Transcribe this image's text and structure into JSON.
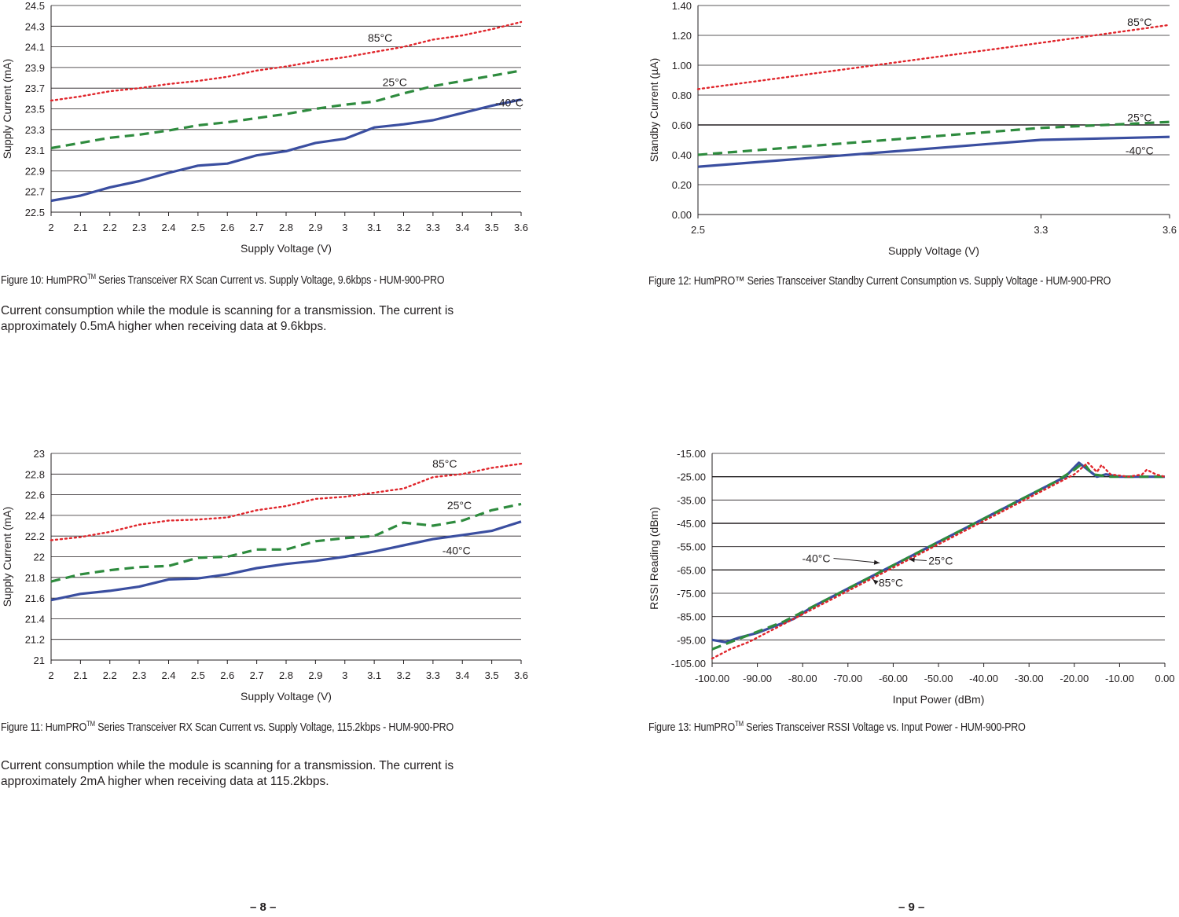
{
  "colors": {
    "cold": "#3a4ea0",
    "room": "#2e8b3e",
    "hot": "#e0252b",
    "grid": "#231f20"
  },
  "charts": [
    {
      "id": "fig10",
      "type": "line",
      "xlabel": "Supply Voltage (V)",
      "ylabel": "Supply Current (mA)",
      "x": [
        2,
        2.1,
        2.2,
        2.3,
        2.4,
        2.5,
        2.6,
        2.7,
        2.8,
        2.9,
        3,
        3.1,
        3.2,
        3.3,
        3.4,
        3.5,
        3.6
      ],
      "x_ticks": [
        "2",
        "2.1",
        "2.2",
        "2.3",
        "2.4",
        "2.5",
        "2.6",
        "2.7",
        "2.8",
        "2.9",
        "3",
        "3.1",
        "3.2",
        "3.3",
        "3.4",
        "3.5",
        "3.6"
      ],
      "ylim": [
        22.5,
        24.5
      ],
      "y_ticks": [
        22.5,
        22.7,
        22.9,
        23.1,
        23.3,
        23.5,
        23.7,
        23.9,
        24.1,
        24.3,
        24.5
      ],
      "y_tick_labels": [
        "22.5",
        "22.7",
        "22.9",
        "23.1",
        "23.3",
        "23.5",
        "23.7",
        "23.9",
        "24.1",
        "24.3",
        "24.5"
      ],
      "series": [
        {
          "name": "-40°C",
          "style": "solid",
          "values": [
            22.61,
            22.66,
            22.74,
            22.8,
            22.88,
            22.95,
            22.97,
            23.05,
            23.09,
            23.17,
            23.21,
            23.32,
            23.35,
            23.39,
            23.46,
            23.53,
            23.59
          ]
        },
        {
          "name": "25°C",
          "style": "dashed",
          "values": [
            23.12,
            23.17,
            23.22,
            23.25,
            23.29,
            23.34,
            23.37,
            23.41,
            23.45,
            23.5,
            23.54,
            23.57,
            23.65,
            23.72,
            23.77,
            23.82,
            23.87
          ]
        },
        {
          "name": "85°C",
          "style": "dotted",
          "values": [
            23.58,
            23.62,
            23.67,
            23.7,
            23.74,
            23.77,
            23.81,
            23.87,
            23.91,
            23.96,
            24.0,
            24.05,
            24.1,
            24.17,
            24.21,
            24.27,
            24.34
          ]
        }
      ],
      "labels": [
        {
          "text": "85°C",
          "x": 3.12,
          "y": 24.19
        },
        {
          "text": "25°C",
          "x": 3.17,
          "y": 23.76
        },
        {
          "text": "-40°C",
          "x": 3.56,
          "y": 23.56
        }
      ]
    },
    {
      "id": "fig11",
      "type": "line",
      "xlabel": "Supply Voltage (V)",
      "ylabel": "Supply Current (mA)",
      "x": [
        2,
        2.1,
        2.2,
        2.3,
        2.4,
        2.5,
        2.6,
        2.7,
        2.8,
        2.9,
        3,
        3.1,
        3.2,
        3.3,
        3.4,
        3.5,
        3.6
      ],
      "x_ticks": [
        "2",
        "2.1",
        "2.2",
        "2.3",
        "2.4",
        "2.5",
        "2.6",
        "2.7",
        "2.8",
        "2.9",
        "3",
        "3.1",
        "3.2",
        "3.3",
        "3.4",
        "3.5",
        "3.6"
      ],
      "ylim": [
        21,
        23
      ],
      "y_ticks": [
        21,
        21.2,
        21.4,
        21.6,
        21.8,
        22,
        22.2,
        22.4,
        22.6,
        22.8,
        23
      ],
      "y_tick_labels": [
        "21",
        "21.2",
        "21.4",
        "21.6",
        "21.8",
        "22",
        "22.2",
        "22.4",
        "22.6",
        "22.8",
        "23"
      ],
      "series": [
        {
          "name": "-40°C",
          "style": "solid",
          "values": [
            21.58,
            21.64,
            21.67,
            21.71,
            21.78,
            21.79,
            21.83,
            21.89,
            21.93,
            21.96,
            22.0,
            22.05,
            22.11,
            22.17,
            22.21,
            22.25,
            22.34
          ]
        },
        {
          "name": "25°C",
          "style": "dashed",
          "values": [
            21.76,
            21.83,
            21.87,
            21.9,
            21.91,
            21.99,
            22.0,
            22.07,
            22.07,
            22.15,
            22.18,
            22.2,
            22.33,
            22.3,
            22.35,
            22.45,
            22.51
          ]
        },
        {
          "name": "85°C",
          "style": "dotted",
          "values": [
            22.16,
            22.19,
            22.24,
            22.31,
            22.35,
            22.36,
            22.38,
            22.45,
            22.49,
            22.56,
            22.58,
            22.62,
            22.66,
            22.77,
            22.8,
            22.86,
            22.9
          ]
        }
      ],
      "labels": [
        {
          "text": "85°C",
          "x": 3.34,
          "y": 22.9
        },
        {
          "text": "25°C",
          "x": 3.39,
          "y": 22.5
        },
        {
          "text": "-40°C",
          "x": 3.38,
          "y": 22.06
        }
      ]
    },
    {
      "id": "fig12",
      "type": "line",
      "xlabel": "Supply Voltage (V)",
      "ylabel": "Standby Current (µA)",
      "x": [
        2.5,
        3.3,
        3.6
      ],
      "x_ticks": [
        "2.5",
        "3.3",
        "3.6"
      ],
      "ylim": [
        0,
        1.4
      ],
      "y_ticks": [
        0,
        0.2,
        0.4,
        0.6,
        0.8,
        1.0,
        1.2,
        1.4
      ],
      "y_tick_labels": [
        "0.00",
        "0.20",
        "0.40",
        "0.60",
        "0.80",
        "1.00",
        "1.20",
        "1.40"
      ],
      "series": [
        {
          "name": "-40°C",
          "style": "solid",
          "values": [
            0.32,
            0.5,
            0.52
          ]
        },
        {
          "name": "25°C",
          "style": "dashed",
          "values": [
            0.4,
            0.58,
            0.62
          ]
        },
        {
          "name": "85°C",
          "style": "dotted",
          "values": [
            0.84,
            1.15,
            1.27
          ]
        }
      ],
      "labels": [
        {
          "text": "85°C",
          "x": 3.53,
          "y": 1.29
        },
        {
          "text": "25°C",
          "x": 3.53,
          "y": 0.65
        },
        {
          "text": "-40°C",
          "x": 3.53,
          "y": 0.43
        }
      ]
    },
    {
      "id": "fig13",
      "type": "line",
      "xlabel": "Input Power (dBm)",
      "ylabel": "RSSI Reading (dBm)",
      "x": [
        -100,
        -90,
        -80,
        -70,
        -60,
        -50,
        -40,
        -30,
        -20,
        -10,
        0
      ],
      "x_ticks": [
        "-100.00",
        "-90.00",
        "-80.00",
        "-70.00",
        "-60.00",
        "-50.00",
        "-40.00",
        "-30.00",
        "-20.00",
        "-10.00",
        "0.00"
      ],
      "ylim": [
        -105,
        -15
      ],
      "y_ticks": [
        -105,
        -95,
        -85,
        -75,
        -65,
        -55,
        -45,
        -35,
        -25,
        -15
      ],
      "y_tick_labels": [
        "-105.00",
        "-95.00",
        "-85.00",
        "-75.00",
        "-65.00",
        "-55.00",
        "-45.00",
        "-35.00",
        "-25.00",
        "-15.00"
      ],
      "series": [
        {
          "name": "-40°C",
          "style": "solid",
          "points": [
            [
              -100,
              -95
            ],
            [
              -97,
              -96
            ],
            [
              -94,
              -94
            ],
            [
              -90,
              -92
            ],
            [
              -86,
              -89
            ],
            [
              -82,
              -86
            ],
            [
              -78,
              -81
            ],
            [
              -74,
              -77
            ],
            [
              -70,
              -73
            ],
            [
              -66,
              -69
            ],
            [
              -62,
              -65
            ],
            [
              -58,
              -61
            ],
            [
              -54,
              -57
            ],
            [
              -50,
              -53
            ],
            [
              -46,
              -49
            ],
            [
              -42,
              -45
            ],
            [
              -38,
              -41
            ],
            [
              -34,
              -37
            ],
            [
              -30,
              -33
            ],
            [
              -26,
              -29
            ],
            [
              -22,
              -25
            ],
            [
              -19,
              -19
            ],
            [
              -17,
              -22
            ],
            [
              -15,
              -25
            ],
            [
              -13,
              -24
            ],
            [
              -10,
              -25
            ],
            [
              -5,
              -25
            ],
            [
              0,
              -25
            ]
          ]
        },
        {
          "name": "25°C",
          "style": "dashed",
          "points": [
            [
              -100,
              -99
            ],
            [
              -96,
              -96
            ],
            [
              -92,
              -93
            ],
            [
              -88,
              -90
            ],
            [
              -84,
              -87
            ],
            [
              -80,
              -83
            ],
            [
              -76,
              -79
            ],
            [
              -72,
              -75
            ],
            [
              -68,
              -71
            ],
            [
              -64,
              -67
            ],
            [
              -60,
              -63
            ],
            [
              -56,
              -59
            ],
            [
              -52,
              -55
            ],
            [
              -48,
              -51
            ],
            [
              -44,
              -47
            ],
            [
              -40,
              -43
            ],
            [
              -36,
              -39
            ],
            [
              -32,
              -35
            ],
            [
              -28,
              -31
            ],
            [
              -24,
              -27
            ],
            [
              -20,
              -22
            ],
            [
              -18,
              -19
            ],
            [
              -16,
              -24
            ],
            [
              -12,
              -25
            ],
            [
              -6,
              -25
            ],
            [
              0,
              -25
            ]
          ]
        },
        {
          "name": "85°C",
          "style": "dotted",
          "points": [
            [
              -100,
              -103
            ],
            [
              -96,
              -99
            ],
            [
              -92,
              -96
            ],
            [
              -88,
              -92
            ],
            [
              -84,
              -88
            ],
            [
              -80,
              -84
            ],
            [
              -76,
              -80
            ],
            [
              -72,
              -76
            ],
            [
              -68,
              -72
            ],
            [
              -64,
              -68
            ],
            [
              -60,
              -64
            ],
            [
              -56,
              -60
            ],
            [
              -52,
              -56
            ],
            [
              -48,
              -52
            ],
            [
              -44,
              -48
            ],
            [
              -40,
              -44
            ],
            [
              -36,
              -40
            ],
            [
              -32,
              -36
            ],
            [
              -28,
              -32
            ],
            [
              -24,
              -28
            ],
            [
              -20,
              -24
            ],
            [
              -17,
              -19
            ],
            [
              -15,
              -23
            ],
            [
              -14,
              -20
            ],
            [
              -12,
              -24
            ],
            [
              -8,
              -25
            ],
            [
              -5,
              -24
            ],
            [
              -4,
              -22
            ],
            [
              -2,
              -24
            ],
            [
              0,
              -25
            ]
          ]
        }
      ],
      "labels": [
        {
          "text": "-40°C",
          "x": -77,
          "y": -60,
          "ax": -63,
          "ay": -62
        },
        {
          "text": "25°C",
          "x": -49.5,
          "y": -61,
          "ax": -56.5,
          "ay": -60.5
        },
        {
          "text": "85°C",
          "x": -60.5,
          "y": -70.5,
          "ax": -64.5,
          "ay": -69
        }
      ]
    }
  ],
  "captions": {
    "fig10": {
      "pre": "Figure 10: HumPRO",
      "tm": "TM",
      "post": " Series Transceiver RX Scan Current vs. Supply Voltage, 9.6kbps - HUM-900-PRO"
    },
    "fig11": {
      "pre": "Figure 11: HumPRO",
      "tm": "TM",
      "post": " Series Transceiver RX Scan Current vs. Supply Voltage, 115.2kbps - HUM-900-PRO"
    },
    "fig12": "Figure 12: HumPRO™ Series Transceiver Standby Current Consumption vs. Supply Voltage - HUM-900-PRO",
    "fig13": {
      "pre": "Figure 13: HumPRO",
      "tm": "TM",
      "post": " Series Transceiver RSSI Voltage vs. Input Power - HUM-900-PRO"
    }
  },
  "paragraphs": {
    "p1": "Current consumption while the module is scanning for a transmission. The current is approximately 0.5mA higher when receiving data at 9.6kbps.",
    "p2": "Current consumption while the module is scanning for a transmission. The current is approximately 2mA higher when receiving data at 115.2kbps."
  },
  "pages": {
    "left": "– 8 –",
    "right": "– 9 –"
  }
}
